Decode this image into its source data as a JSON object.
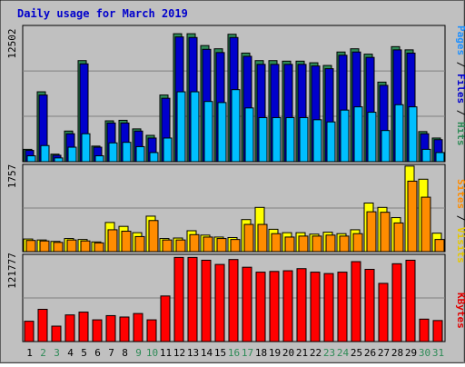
{
  "title": "Daily usage for March 2019",
  "labels": {
    "top_max": "12502",
    "mid_max": "1757",
    "bot_max": "121777",
    "right_top": [
      {
        "text": "Pages",
        "color": "#1e90ff"
      },
      {
        "text": " / ",
        "color": "#000000"
      },
      {
        "text": "Files",
        "color": "#0000cc"
      },
      {
        "text": " / ",
        "color": "#000000"
      },
      {
        "text": "Hits",
        "color": "#2e8b57"
      }
    ],
    "right_mid": [
      {
        "text": "Sites",
        "color": "#ff8c00"
      },
      {
        "text": " / ",
        "color": "#000000"
      },
      {
        "text": "Visits",
        "color": "#e6c800"
      }
    ],
    "right_bot": [
      {
        "text": "KBytes",
        "color": "#e00000"
      }
    ]
  },
  "colors": {
    "background": "#c0c0c0",
    "hits": "#2e8b57",
    "files": "#0000cc",
    "pages": "#00bfff",
    "visits": "#ffff00",
    "sites": "#ff8c00",
    "kbytes": "#ff0000",
    "weekday": "#000000",
    "weekend": "#2e8b57"
  },
  "chart_data": [
    {
      "type": "bar",
      "title": "Daily usage for March 2019",
      "categories": [
        "1",
        "2",
        "3",
        "4",
        "5",
        "6",
        "7",
        "8",
        "9",
        "10",
        "11",
        "12",
        "13",
        "14",
        "15",
        "16",
        "17",
        "18",
        "19",
        "20",
        "21",
        "22",
        "23",
        "24",
        "25",
        "26",
        "27",
        "28",
        "29",
        "30",
        "31"
      ],
      "weekend_days": [
        2,
        3,
        9,
        10,
        16,
        17,
        23,
        24,
        30,
        31
      ],
      "ylim": [
        0,
        12502
      ],
      "series": [
        {
          "name": "Hits",
          "values": [
            1150,
            6500,
            700,
            2850,
            9400,
            1450,
            3800,
            3850,
            3050,
            2450,
            6200,
            11900,
            11900,
            10800,
            10500,
            11850,
            10100,
            9400,
            9400,
            9350,
            9350,
            9200,
            8950,
            10200,
            10500,
            10000,
            7400,
            10700,
            10400,
            2800,
            2200
          ]
        },
        {
          "name": "Files",
          "values": [
            1050,
            6200,
            600,
            2600,
            9100,
            1350,
            3600,
            3600,
            2850,
            2200,
            5900,
            11600,
            11550,
            10450,
            10150,
            11550,
            9800,
            9050,
            9050,
            9050,
            9050,
            8900,
            8650,
            9900,
            10200,
            9700,
            7100,
            10400,
            10100,
            2600,
            2050
          ]
        },
        {
          "name": "Pages",
          "values": [
            550,
            1500,
            350,
            1350,
            2600,
            550,
            1750,
            1800,
            1400,
            850,
            2200,
            6500,
            6500,
            5600,
            5500,
            6700,
            5000,
            4100,
            4100,
            4100,
            4100,
            3900,
            3700,
            4800,
            5100,
            4600,
            2900,
            5300,
            5100,
            1150,
            850
          ]
        }
      ]
    },
    {
      "type": "bar",
      "categories": [
        "1",
        "2",
        "3",
        "4",
        "5",
        "6",
        "7",
        "8",
        "9",
        "10",
        "11",
        "12",
        "13",
        "14",
        "15",
        "16",
        "17",
        "18",
        "19",
        "20",
        "21",
        "22",
        "23",
        "24",
        "25",
        "26",
        "27",
        "28",
        "29",
        "30",
        "31"
      ],
      "ylim": [
        0,
        1757
      ],
      "series": [
        {
          "name": "Visits",
          "values": [
            260,
            240,
            210,
            270,
            250,
            200,
            600,
            520,
            390,
            730,
            270,
            280,
            430,
            340,
            300,
            290,
            660,
            910,
            460,
            390,
            390,
            360,
            400,
            370,
            450,
            1000,
            910,
            700,
            1760,
            1490,
            380
          ]
        },
        {
          "name": "Sites",
          "values": [
            230,
            220,
            190,
            240,
            220,
            180,
            450,
            420,
            310,
            640,
            240,
            240,
            350,
            300,
            270,
            250,
            560,
            560,
            370,
            300,
            320,
            320,
            340,
            320,
            370,
            820,
            810,
            590,
            1450,
            1120,
            250
          ]
        }
      ]
    },
    {
      "type": "bar",
      "categories": [
        "1",
        "2",
        "3",
        "4",
        "5",
        "6",
        "7",
        "8",
        "9",
        "10",
        "11",
        "12",
        "13",
        "14",
        "15",
        "16",
        "17",
        "18",
        "19",
        "20",
        "21",
        "22",
        "23",
        "24",
        "25",
        "26",
        "27",
        "28",
        "29",
        "30",
        "31"
      ],
      "ylim": [
        0,
        121777
      ],
      "series": [
        {
          "name": "KBytes",
          "values": [
            29000,
            46000,
            22000,
            38000,
            42000,
            31000,
            37000,
            35000,
            40000,
            31000,
            65000,
            120000,
            120000,
            116000,
            110000,
            117000,
            106000,
            99000,
            100000,
            101000,
            104000,
            99000,
            97000,
            99000,
            114000,
            103000,
            83000,
            111000,
            116000,
            32000,
            30000
          ]
        }
      ]
    }
  ]
}
